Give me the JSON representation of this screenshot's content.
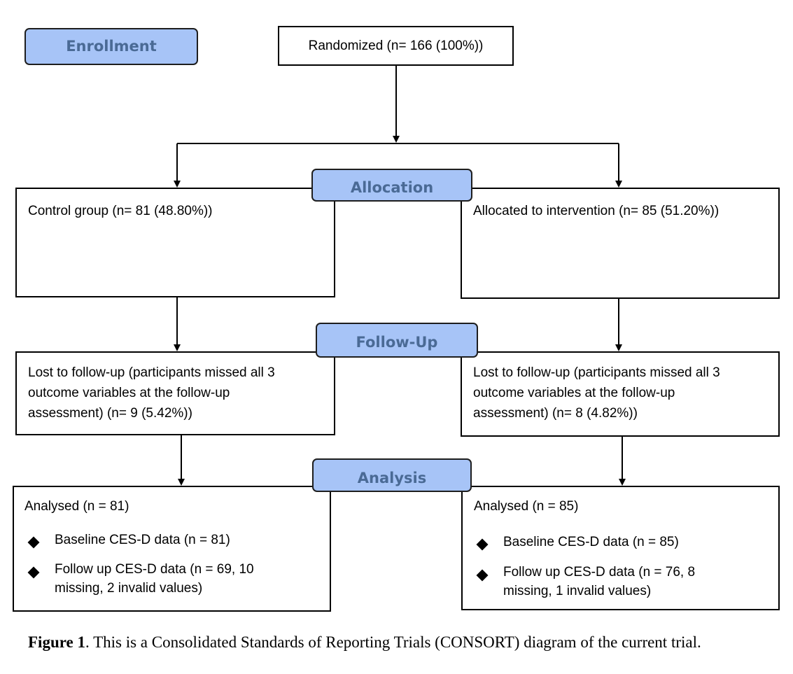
{
  "stages": {
    "enrollment": "Enrollment",
    "allocation": "Allocation",
    "follow_up": "Follow-Up",
    "analysis": "Analysis"
  },
  "randomized": "Randomized (n= 166 (100%))",
  "control": {
    "allocation": "Control group (n= 81 (48.80%))",
    "lost_line1": "Lost to follow-up (participants missed all 3",
    "lost_line2": "outcome variables at the follow-up",
    "lost_line3": "assessment) (n= 9 (5.42%))",
    "analysed": "Analysed (n = 81)",
    "baseline": "Baseline CES-D data (n = 81)",
    "followup_line1": "Follow up CES-D data (n = 69, 10",
    "followup_line2": "missing, 2 invalid values)"
  },
  "intervention": {
    "allocation": "Allocated to intervention (n= 85 (51.20%))",
    "lost_line1": "Lost to follow-up (participants missed all 3",
    "lost_line2": "outcome variables at the follow-up",
    "lost_line3": "assessment) (n= 8 (4.82%))",
    "analysed": "Analysed (n = 85)",
    "baseline": "Baseline CES-D data (n = 85)",
    "followup_line1": "Follow up CES-D data (n = 76, 8",
    "followup_line2": "missing, 1 invalid values)"
  },
  "caption": {
    "label": "Figure 1",
    "text": ". This is a Consolidated Standards of Reporting Trials (CONSORT) diagram of the current trial."
  },
  "colors": {
    "stage_fill": "#a7c4f7",
    "stage_text": "#4a6a95",
    "line": "#000000"
  }
}
